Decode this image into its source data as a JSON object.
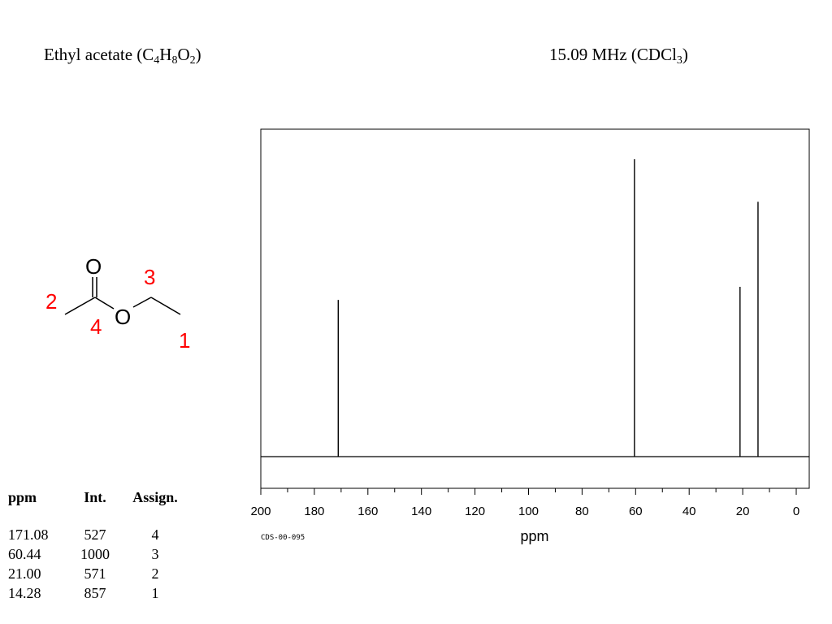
{
  "header": {
    "compound": "Ethyl acetate",
    "formula_parts": [
      "(C",
      "4",
      "H",
      "8",
      "O",
      "2",
      ")"
    ],
    "freq_parts": [
      "15.09 MHz (CDCl",
      "3",
      ")"
    ]
  },
  "structure": {
    "atom_o1": "O",
    "atom_o2": "O",
    "labels": [
      "1",
      "2",
      "3",
      "4"
    ],
    "label_color": "#ff0000"
  },
  "table": {
    "headers": [
      "ppm",
      "Int.",
      "Assign."
    ],
    "rows": [
      [
        "171.08",
        "527",
        "4"
      ],
      [
        "60.44",
        "1000",
        "3"
      ],
      [
        "21.00",
        "571",
        "2"
      ],
      [
        "14.28",
        "857",
        "1"
      ]
    ]
  },
  "chart_data": {
    "type": "line",
    "title": "",
    "xlabel": "ppm",
    "ylabel": "",
    "xlim": [
      200,
      0
    ],
    "x_reversed": true,
    "ylim": [
      0,
      1000
    ],
    "ticks": [
      200,
      180,
      160,
      140,
      120,
      100,
      80,
      60,
      40,
      20,
      0
    ],
    "tick_labels": [
      "200",
      "180",
      "160",
      "140",
      "120",
      "100",
      "80",
      "60",
      "40",
      "20",
      "0"
    ],
    "code": "CDS-00-095",
    "peaks": [
      {
        "ppm": 171.08,
        "intensity": 527
      },
      {
        "ppm": 60.44,
        "intensity": 1000
      },
      {
        "ppm": 21.0,
        "intensity": 571
      },
      {
        "ppm": 14.28,
        "intensity": 857
      }
    ],
    "line_color": "#000000"
  }
}
